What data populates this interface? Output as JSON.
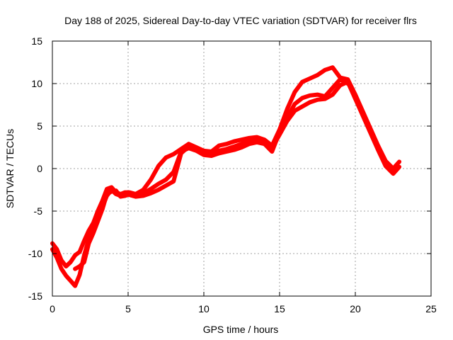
{
  "chart_data": {
    "type": "line",
    "title": "Day 188 of 2025, Sidereal Day-to-day VTEC variation (SDTVAR) for receiver flrs",
    "xlabel": "GPS time / hours",
    "ylabel": "SDTVAR / TECUs",
    "xlim": [
      0,
      25
    ],
    "ylim": [
      -15,
      15
    ],
    "xticks": [
      0,
      5,
      10,
      15,
      20,
      25
    ],
    "yticks": [
      -15,
      -10,
      -5,
      0,
      5,
      10,
      15
    ],
    "grid": true,
    "legend": "none",
    "series_color": "#ff0000",
    "series": [
      {
        "x": [
          0,
          0.3,
          0.6,
          0.9,
          1.2,
          1.5,
          1.8,
          2.1,
          2.4,
          2.7,
          3.0,
          3.3,
          3.6,
          3.9,
          4.2,
          4.5,
          4.8,
          5.1,
          5.5,
          6.0,
          6.5,
          7.0,
          7.5,
          8.0,
          8.5,
          9.0,
          9.5,
          10.0,
          10.5,
          11.0,
          11.5,
          12.0,
          12.5,
          13.0,
          13.5,
          14.0,
          14.5,
          15.0,
          15.5,
          16.0,
          16.5,
          17.0,
          17.5,
          18.0,
          18.5,
          19.0,
          19.5,
          20.0,
          20.5,
          21.0,
          21.5,
          22.0,
          22.5,
          22.9
        ],
        "values": [
          -9.5,
          -10.5,
          -11.8,
          -12.6,
          -13.2,
          -13.8,
          -12.5,
          -10.2,
          -8.3,
          -7.2,
          -5.8,
          -4.5,
          -3.2,
          -2.5,
          -3.0,
          -3.2,
          -3.0,
          -3.1,
          -3.3,
          -3.2,
          -2.9,
          -2.5,
          -2.0,
          -1.5,
          1.8,
          2.6,
          2.3,
          1.9,
          1.7,
          2.1,
          2.3,
          2.6,
          2.9,
          3.2,
          3.4,
          3.2,
          2.4,
          4.0,
          5.6,
          6.8,
          7.3,
          7.8,
          8.1,
          8.2,
          8.7,
          9.8,
          10.2,
          8.2,
          6.2,
          4.2,
          2.2,
          0.3,
          -0.6,
          0.2
        ]
      },
      {
        "x": [
          0,
          0.3,
          0.6,
          0.9,
          1.2,
          1.5,
          1.8,
          2.1,
          2.4,
          2.7,
          3.0,
          3.3,
          3.6,
          3.9,
          4.2,
          4.5,
          4.8,
          5.1,
          5.5,
          6.0,
          6.5,
          7.0,
          7.5,
          8.0,
          8.5,
          9.0,
          9.5,
          10.0,
          10.5,
          11.0,
          11.5,
          12.0,
          12.5,
          13.0,
          13.5,
          14.0,
          14.5,
          15.0,
          15.5,
          16.0,
          16.5,
          17.0,
          17.5,
          18.0,
          18.5,
          19.0,
          19.5,
          20.0,
          20.5,
          21.0,
          21.5,
          22.0,
          22.5,
          22.9
        ],
        "values": [
          -8.8,
          -9.5,
          -10.8,
          -11.5,
          -11.0,
          -10.2,
          -9.8,
          -8.5,
          -7.3,
          -6.4,
          -5.0,
          -3.8,
          -2.4,
          -2.2,
          -2.8,
          -3.0,
          -2.8,
          -2.8,
          -3.0,
          -2.5,
          -1.3,
          0.3,
          1.3,
          1.7,
          2.3,
          2.9,
          2.5,
          2.1,
          2.0,
          2.7,
          2.9,
          3.2,
          3.4,
          3.6,
          3.7,
          3.4,
          2.7,
          4.6,
          7.0,
          9.0,
          10.2,
          10.6,
          11.0,
          11.6,
          11.9,
          10.7,
          10.5,
          8.7,
          6.7,
          4.7,
          2.7,
          0.9,
          0.0,
          0.8
        ]
      },
      {
        "x": [
          1.5,
          1.8,
          2.1,
          2.4,
          2.7,
          3.0,
          3.3,
          3.6,
          3.9,
          4.2,
          4.5,
          4.8,
          5.1,
          5.5,
          6.0,
          6.5,
          7.0,
          7.5,
          8.0,
          8.5,
          9.0,
          9.5,
          10.0,
          10.5,
          11.0,
          11.5,
          12.0,
          12.5,
          13.0,
          13.5,
          14.0,
          14.5,
          15.0,
          15.5,
          16.0,
          16.5,
          17.0,
          17.5,
          18.0,
          18.5,
          19.0,
          19.5
        ],
        "values": [
          -11.8,
          -11.5,
          -11.0,
          -8.8,
          -7.6,
          -6.2,
          -4.8,
          -3.0,
          -2.7,
          -2.6,
          -3.3,
          -3.2,
          -3.0,
          -3.2,
          -2.9,
          -2.4,
          -1.8,
          -1.3,
          -0.4,
          2.0,
          2.4,
          2.1,
          1.6,
          1.5,
          1.8,
          2.0,
          2.2,
          2.5,
          2.9,
          3.1,
          2.9,
          2.0,
          4.3,
          6.0,
          7.6,
          8.3,
          8.6,
          8.7,
          8.5,
          9.5,
          10.5,
          10.0
        ]
      }
    ]
  }
}
